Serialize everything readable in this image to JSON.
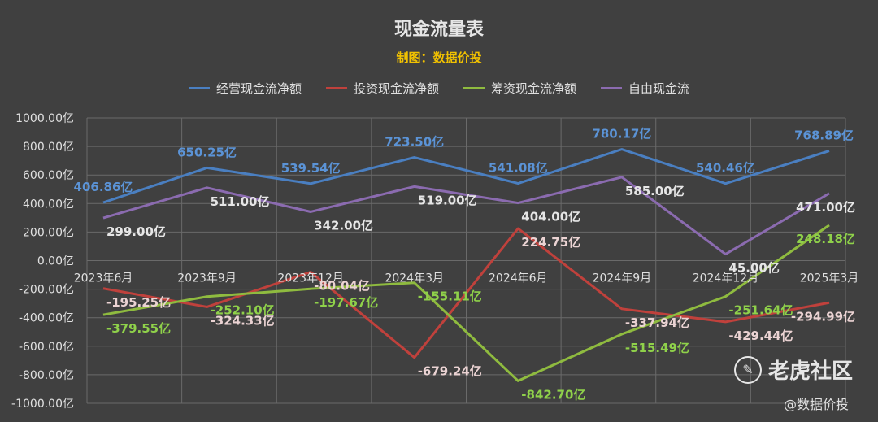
{
  "page": {
    "title": "现金流量表",
    "subtitle": "制图：数据价投",
    "watermark": "老虎社区",
    "credit": "@数据价投",
    "background": "#404040"
  },
  "chart_data": {
    "type": "line",
    "title": "现金流量表",
    "subtitle": "制图：数据价投",
    "categories": [
      "2023年6月",
      "2023年9月",
      "2023年12月",
      "2024年3月",
      "2024年6月",
      "2024年9月",
      "2024年12月",
      "2025年3月"
    ],
    "y_ticks": [
      "1000.00亿",
      "800.00亿",
      "600.00亿",
      "400.00亿",
      "200.00亿",
      "0.00亿",
      "-200.00亿",
      "-400.00亿",
      "-600.00亿",
      "-800.00亿",
      "-1000.00亿"
    ],
    "ylim": [
      -1000,
      1000
    ],
    "grid": true,
    "legend_position": "top",
    "series": [
      {
        "name": "经营现金流净额",
        "color": "#4a7fc1",
        "label_color": "#5b93d6",
        "values": [
          406.86,
          650.25,
          539.54,
          723.5,
          541.08,
          780.17,
          540.46,
          768.89
        ],
        "labels": [
          "406.86亿",
          "650.25亿",
          "539.54亿",
          "723.50亿",
          "541.08亿",
          "780.17亿",
          "540.46亿",
          "768.89亿"
        ]
      },
      {
        "name": "投资现金流净额",
        "color": "#c0413c",
        "label_color": "#ebd3d3",
        "values": [
          -195.25,
          -324.33,
          -80.04,
          -679.24,
          224.75,
          -337.94,
          -429.44,
          -294.99
        ],
        "labels": [
          "-195.25亿",
          "-324.33亿",
          "-80.04亿",
          "-679.24亿",
          "224.75亿",
          "-337.94亿",
          "-429.44亿",
          "-294.99亿"
        ]
      },
      {
        "name": "筹资现金流净额",
        "color": "#8fbb3f",
        "label_color": "#8fd14a",
        "values": [
          -379.55,
          -252.1,
          -197.67,
          -155.11,
          -842.7,
          -515.49,
          -251.64,
          248.18
        ],
        "labels": [
          "-379.55亿",
          "-252.10亿",
          "-197.67亿",
          "-155.11亿",
          "-842.70亿",
          "-515.49亿",
          "-251.64亿",
          "248.18亿"
        ]
      },
      {
        "name": "自由现金流",
        "color": "#8b6bb0",
        "label_color": "#e6e6e6",
        "values": [
          299.0,
          511.0,
          342.0,
          519.0,
          404.0,
          585.0,
          45.0,
          471.0
        ],
        "labels": [
          "299.00亿",
          "511.00亿",
          "342.00亿",
          "519.00亿",
          "404.00亿",
          "585.00亿",
          "45.00亿",
          "471.00亿"
        ]
      }
    ]
  }
}
